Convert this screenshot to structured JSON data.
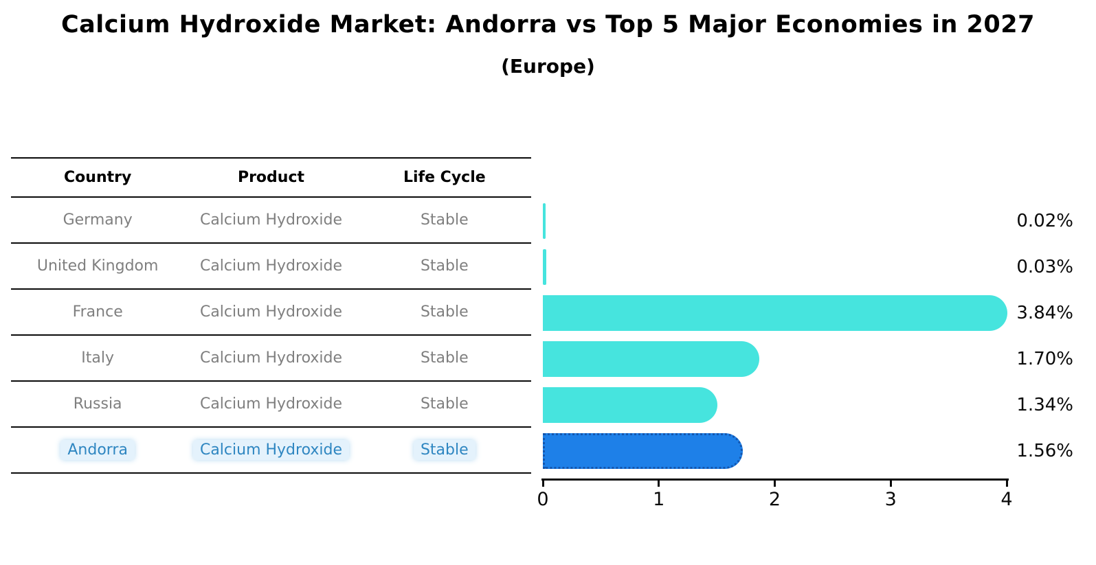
{
  "title": "Calcium Hydroxide Market: Andorra vs Top 5 Major Economies in 2027",
  "subtitle": "(Europe)",
  "table": {
    "headers": [
      "Country",
      "Product",
      "Life Cycle"
    ],
    "rows": [
      [
        "Germany",
        "Calcium Hydroxide",
        "Stable"
      ],
      [
        "United Kingdom",
        "Calcium Hydroxide",
        "Stable"
      ],
      [
        "France",
        "Calcium Hydroxide",
        "Stable"
      ],
      [
        "Italy",
        "Calcium Hydroxide",
        "Stable"
      ],
      [
        "Russia",
        "Calcium Hydroxide",
        "Stable"
      ],
      [
        "Andorra",
        "Calcium Hydroxide",
        "Stable"
      ]
    ],
    "highlight_row_index": 5
  },
  "chart_data": {
    "type": "bar",
    "orientation": "horizontal",
    "title": "Calcium Hydroxide Market: Andorra vs Top 5 Major Economies in 2027",
    "subtitle": "(Europe)",
    "categories": [
      "Germany",
      "United Kingdom",
      "France",
      "Italy",
      "Russia",
      "Andorra"
    ],
    "values": [
      0.02,
      0.03,
      3.84,
      1.7,
      1.34,
      1.56
    ],
    "value_labels": [
      "0.02%",
      "0.03%",
      "3.84%",
      "1.70%",
      "1.34%",
      "1.56%"
    ],
    "xlabel": "",
    "ylabel": "",
    "xlim": [
      0,
      4
    ],
    "x_ticks": [
      0,
      1,
      2,
      3,
      4
    ],
    "x_tick_labels": [
      "0",
      "1",
      "2",
      "3",
      "4"
    ],
    "grid": false,
    "legend": false,
    "highlight_index": 5,
    "colors": {
      "bar": "#46E4DE",
      "highlight_bar": "#1E80E8",
      "highlight_bar_border": "#1456AE",
      "highlight_text": "#2E86C1",
      "row_text": "#7f7f7f",
      "axis": "#0a0a0a",
      "value_label": "#0a0a0a"
    }
  }
}
